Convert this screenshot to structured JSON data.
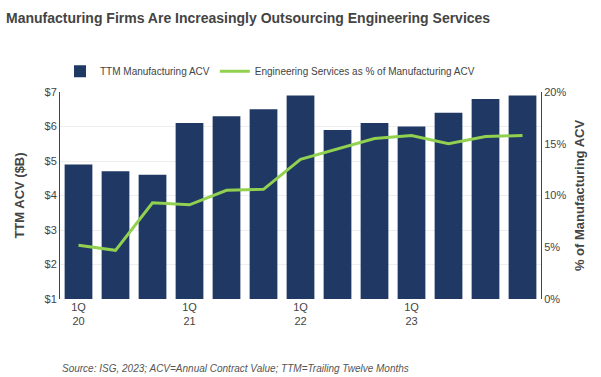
{
  "chart_data": {
    "type": "bar",
    "title": "Manufacturing Firms Are Increasingly Outsourcing Engineering Services",
    "categories": [
      "1Q\n20",
      null,
      null,
      "1Q\n21",
      null,
      null,
      "1Q\n22",
      null,
      null,
      "1Q\n23",
      null,
      null,
      null
    ],
    "series": [
      {
        "name": "TTM Manufacturing ACV",
        "type": "bar",
        "color": "#1F3864",
        "values": [
          4.9,
          4.7,
          4.6,
          6.1,
          6.3,
          6.5,
          6.9,
          5.9,
          6.1,
          6.0,
          6.4,
          6.8,
          6.9
        ]
      },
      {
        "name": "Engineering Services as % of Manufacturing ACV",
        "type": "line",
        "color": "#92D050",
        "axis": "y2",
        "values": [
          5.2,
          4.7,
          9.3,
          9.1,
          10.5,
          10.6,
          13.5,
          14.5,
          15.5,
          15.8,
          15.0,
          15.7,
          15.8
        ]
      }
    ],
    "ylabel": "TTM ACV ($B)",
    "y2label": "% of Manufacturing ACV",
    "ylim": [
      1,
      7
    ],
    "yticks": [
      {
        "value": 1,
        "label": "$1"
      },
      {
        "value": 2,
        "label": "$2"
      },
      {
        "value": 3,
        "label": "$3"
      },
      {
        "value": 4,
        "label": "$4"
      },
      {
        "value": 5,
        "label": "$5"
      },
      {
        "value": 6,
        "label": "$6"
      },
      {
        "value": 7,
        "label": "$7"
      }
    ],
    "y2lim": [
      0,
      20
    ],
    "y2ticks": [
      {
        "value": 0,
        "label": "0%"
      },
      {
        "value": 5,
        "label": "5%"
      },
      {
        "value": 10,
        "label": "10%"
      },
      {
        "value": 15,
        "label": "15%"
      },
      {
        "value": 20,
        "label": "20%"
      }
    ],
    "grid": true,
    "legend": "upper left",
    "annotations": [
      "Source: ISG, 2023; ACV=Annual Contract Value; TTM=Trailing Twelve Months"
    ]
  }
}
